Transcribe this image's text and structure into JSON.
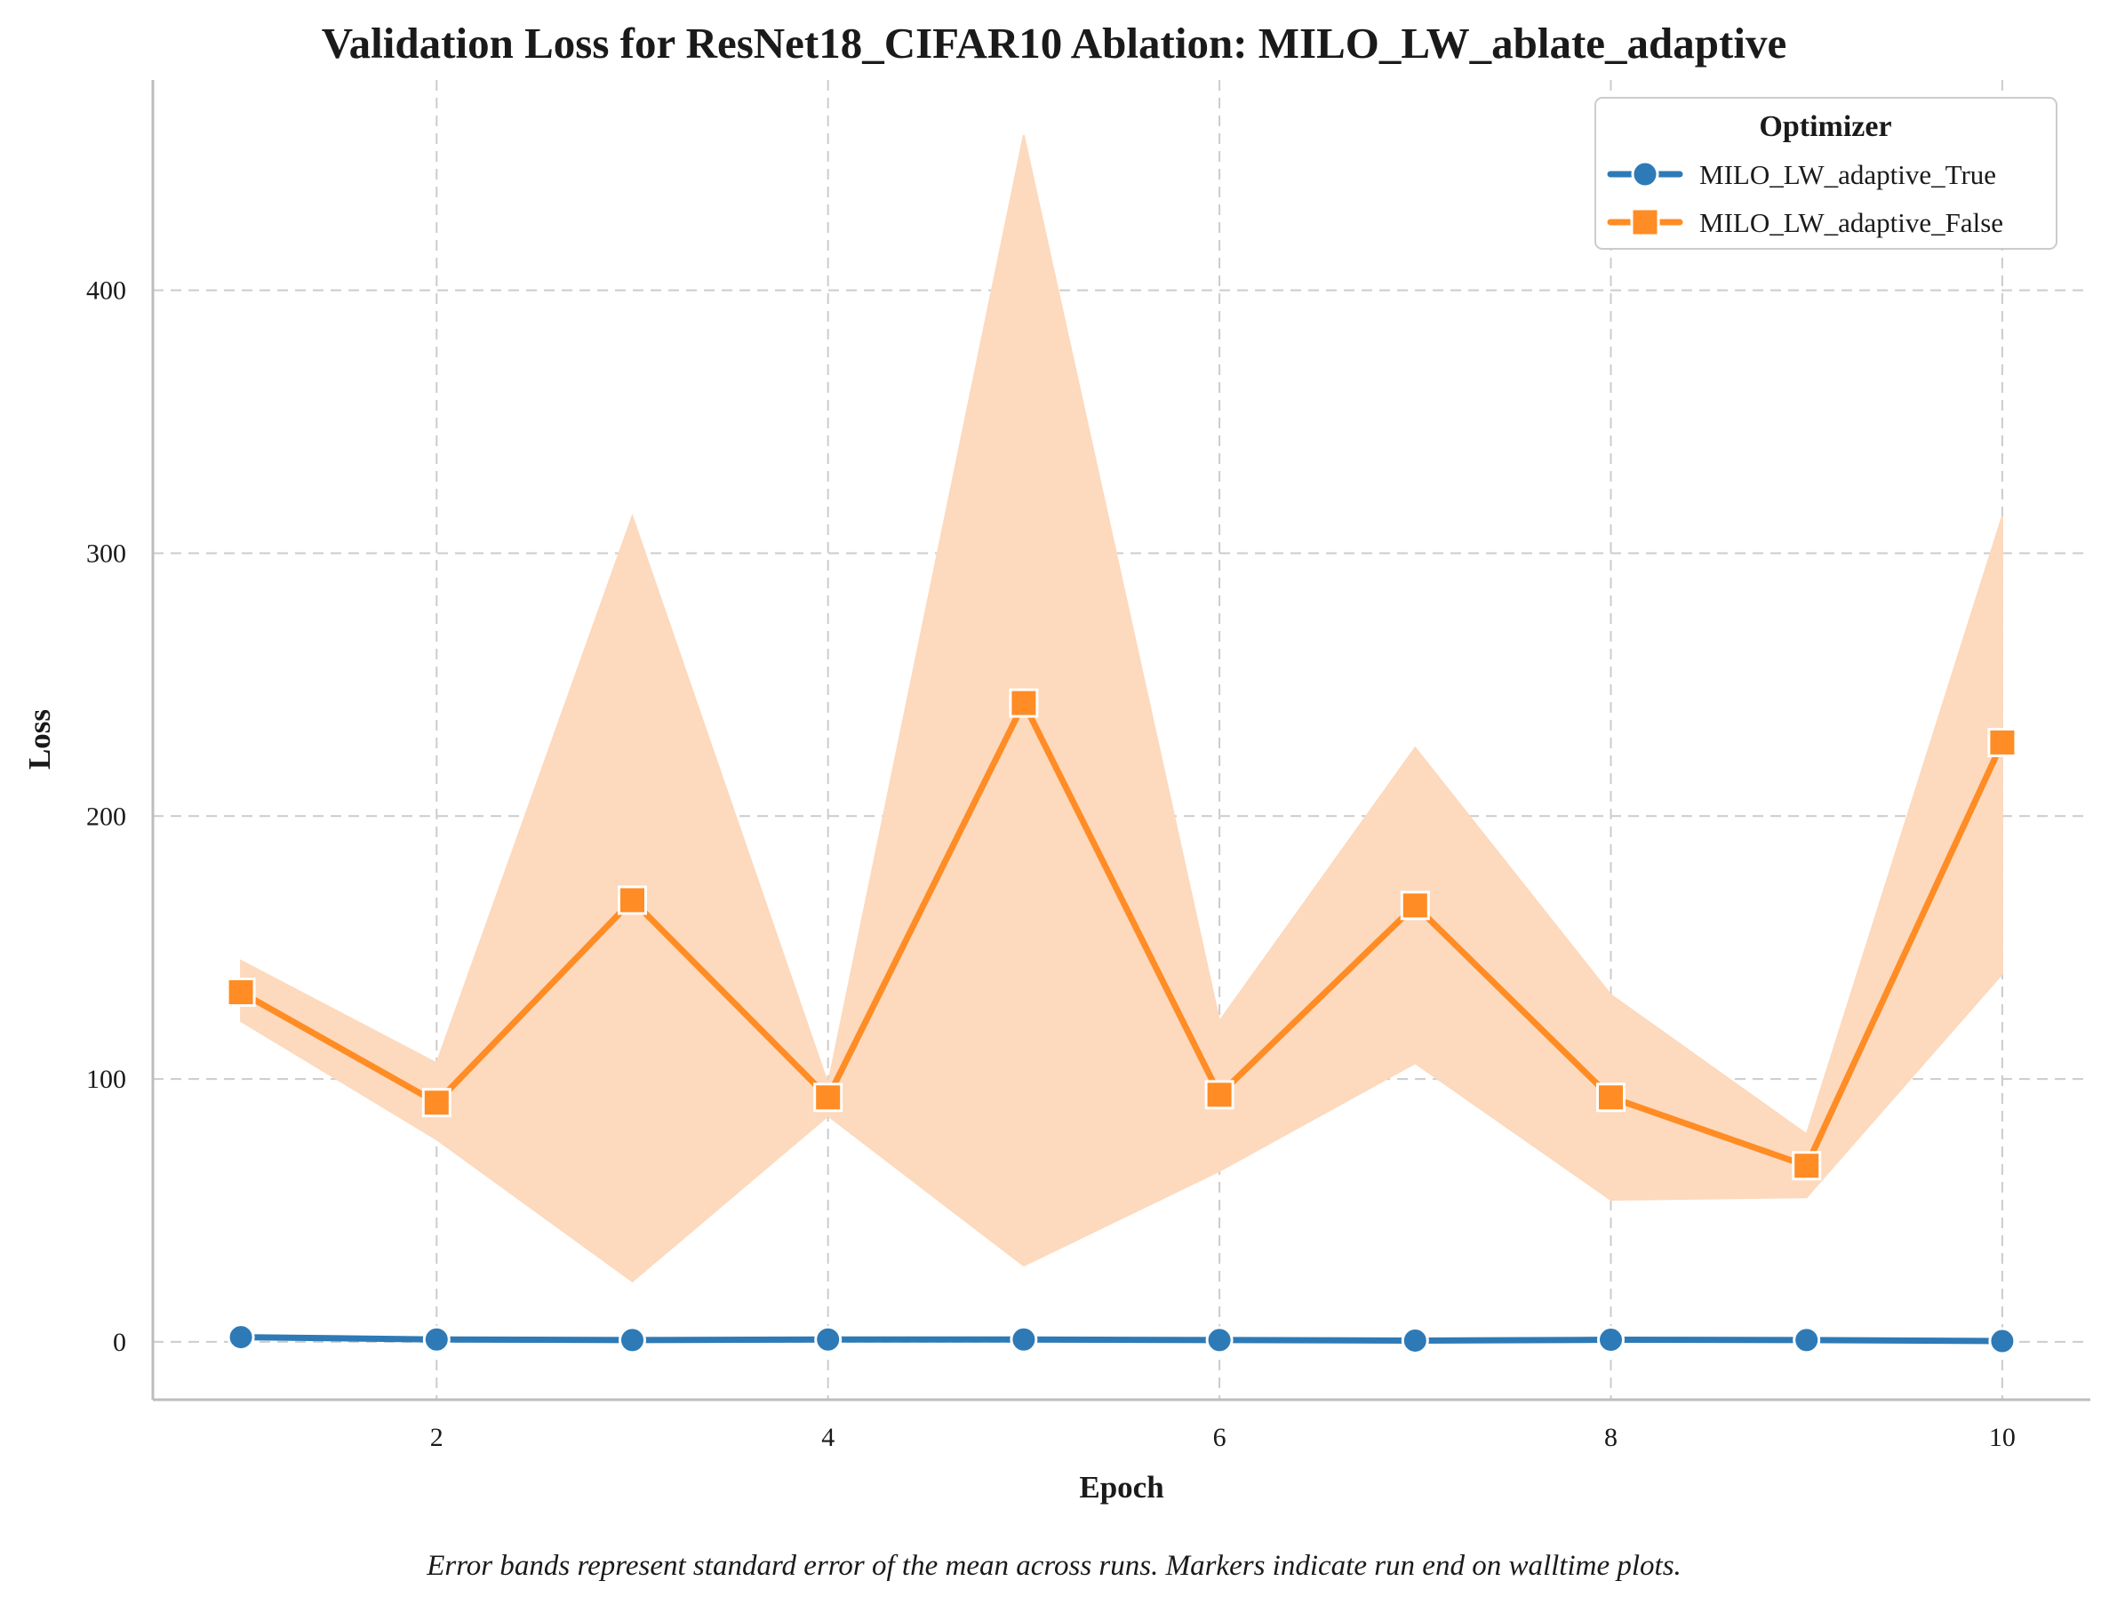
{
  "chart_data": {
    "type": "line",
    "title": "Validation Loss for ResNet18_CIFAR10 Ablation: MILO_LW_ablate_adaptive",
    "xlabel": "Epoch",
    "ylabel": "Loss",
    "xlim": [
      0.55,
      10.45
    ],
    "ylim": [
      -22,
      480
    ],
    "xticks": [
      2,
      4,
      6,
      8,
      10
    ],
    "yticks": [
      0,
      100,
      200,
      300,
      400
    ],
    "grid": true,
    "legend": {
      "title": "Optimizer",
      "placement": "top-right"
    },
    "x": [
      1,
      2,
      3,
      4,
      5,
      6,
      7,
      8,
      9,
      10
    ],
    "series": [
      {
        "name": "MILO_LW_adaptive_True",
        "color": "#2e7ab6",
        "marker": "circle",
        "values": [
          1.8,
          0.9,
          0.7,
          0.9,
          0.9,
          0.7,
          0.5,
          0.8,
          0.7,
          0.3
        ],
        "lower": [
          1.6,
          0.8,
          0.6,
          0.8,
          0.8,
          0.6,
          0.4,
          0.7,
          0.6,
          0.2
        ],
        "upper": [
          2.0,
          1.0,
          0.8,
          1.0,
          1.0,
          0.8,
          0.6,
          0.9,
          0.8,
          0.4
        ]
      },
      {
        "name": "MILO_LW_adaptive_False",
        "color": "#ff8c24",
        "band_color": "#fdd9bd",
        "marker": "square",
        "values": [
          133,
          91,
          168,
          93,
          243,
          94,
          166,
          93,
          67,
          228
        ],
        "lower": [
          122,
          77,
          23,
          86,
          29,
          65,
          106,
          54,
          55,
          140
        ],
        "upper": [
          145,
          106,
          314,
          98,
          459,
          122,
          226,
          132,
          79,
          314
        ]
      }
    ],
    "caption": "Error bands represent standard error of the mean across runs. Markers indicate run end on walltime plots."
  }
}
